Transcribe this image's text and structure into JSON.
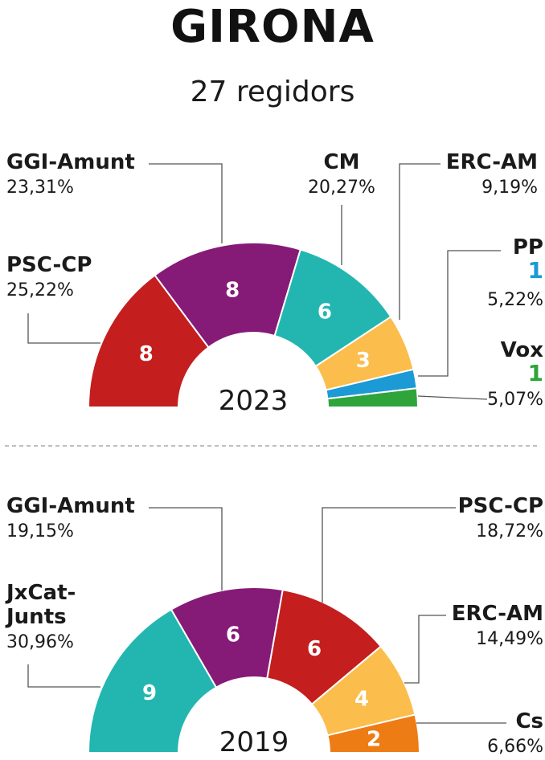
{
  "title": "GIRONA",
  "subtitle": "27 regidors",
  "chart_data": [
    {
      "type": "pie",
      "year": "2023",
      "series": [
        {
          "name": "PSC-CP",
          "seats": 8,
          "pct": "25,22%",
          "color": "#c41e1e"
        },
        {
          "name": "GGI-Amunt",
          "seats": 8,
          "pct": "23,31%",
          "color": "#861a77"
        },
        {
          "name": "CM",
          "seats": 6,
          "pct": "20,27%",
          "color": "#23b6b1"
        },
        {
          "name": "ERC-AM",
          "seats": 3,
          "pct": "9,19%",
          "color": "#fbbd4c"
        },
        {
          "name": "PP",
          "seats": 1,
          "pct": "5,22%",
          "color": "#1b9ad6"
        },
        {
          "name": "Vox",
          "seats": 1,
          "pct": "5,07%",
          "color": "#2ea43a"
        }
      ]
    },
    {
      "type": "pie",
      "year": "2019",
      "series": [
        {
          "name": "JxCat-Junts",
          "seats": 9,
          "pct": "30,96%",
          "color": "#23b6b1"
        },
        {
          "name": "GGI-Amunt",
          "seats": 6,
          "pct": "19,15%",
          "color": "#861a77"
        },
        {
          "name": "PSC-CP",
          "seats": 6,
          "pct": "18,72%",
          "color": "#c41e1e"
        },
        {
          "name": "ERC-AM",
          "seats": 4,
          "pct": "14,49%",
          "color": "#fbbd4c"
        },
        {
          "name": "Cs",
          "seats": 2,
          "pct": "6,66%",
          "color": "#ee7c14"
        }
      ]
    }
  ]
}
